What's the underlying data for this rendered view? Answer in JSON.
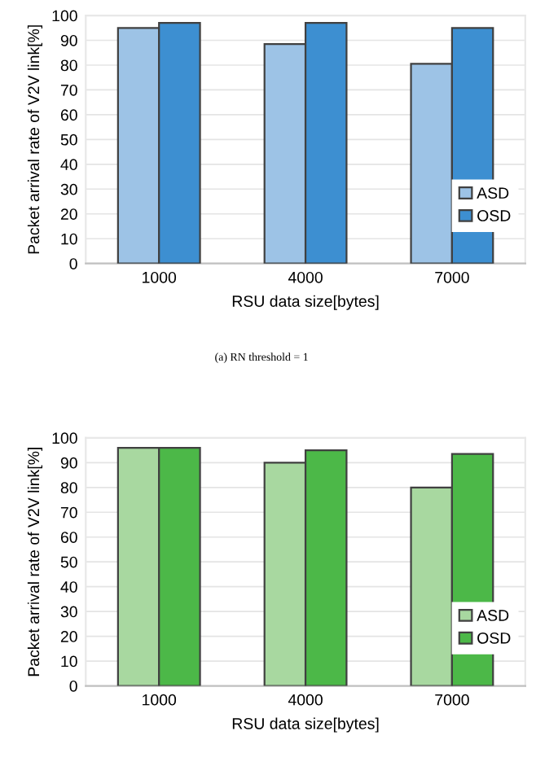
{
  "chart_data": [
    {
      "type": "bar",
      "categories": [
        "1000",
        "4000",
        "7000"
      ],
      "xlabel": "RSU data size[bytes]",
      "ylabel": "Packet arrival rate of V2V link[%]",
      "series": [
        {
          "name": "ASD",
          "color": "#9dc3e6",
          "values": [
            95,
            88.5,
            80.5
          ]
        },
        {
          "name": "OSD",
          "color": "#3d8fd1",
          "values": [
            97,
            97,
            95
          ]
        }
      ],
      "ylim": [
        0,
        100
      ],
      "yticks": [
        0,
        10,
        20,
        30,
        40,
        50,
        60,
        70,
        80,
        90,
        100
      ],
      "grid": "y",
      "legend": "bottom right",
      "annotations": [
        "(a) RN threshold = 1"
      ]
    },
    {
      "type": "bar",
      "categories": [
        "1000",
        "4000",
        "7000"
      ],
      "xlabel": "RSU data size[bytes]",
      "ylabel": "Packet arrival rate of V2V link[%]",
      "series": [
        {
          "name": "ASD",
          "color": "#a8d8a0",
          "values": [
            96,
            90,
            80
          ]
        },
        {
          "name": "OSD",
          "color": "#4cb848",
          "values": [
            96,
            95,
            93.5
          ]
        }
      ],
      "ylim": [
        0,
        100
      ],
      "yticks": [
        0,
        10,
        20,
        30,
        40,
        50,
        60,
        70,
        80,
        90,
        100
      ],
      "grid": "y",
      "legend": "bottom right"
    }
  ]
}
